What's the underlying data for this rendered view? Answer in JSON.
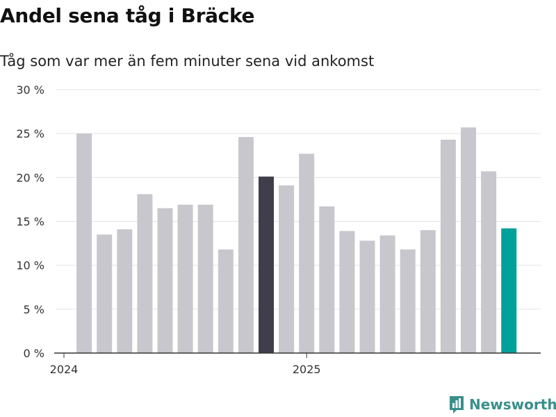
{
  "chart_data": {
    "type": "bar",
    "title": "Andel sena tåg i Bräcke",
    "subtitle": "Tåg som var mer än fem minuter sena vid ankomst",
    "y_ticks": [
      "0 %",
      "5 %",
      "10 %",
      "15 %",
      "20 %",
      "25 %",
      "30 %"
    ],
    "ylim": [
      0,
      30
    ],
    "x_tick_labels": [
      {
        "label": "2024",
        "index": 0
      },
      {
        "label": "2025",
        "index": 12
      }
    ],
    "categories": [
      "2024-01",
      "2024-02",
      "2024-03",
      "2024-04",
      "2024-05",
      "2024-06",
      "2024-07",
      "2024-08",
      "2024-09",
      "2024-10",
      "2024-11",
      "2024-12",
      "2025-01",
      "2025-02",
      "2025-03",
      "2025-04",
      "2025-05",
      "2025-06",
      "2025-07",
      "2025-08",
      "2025-09",
      "2025-10",
      "2025-11",
      "2025-12"
    ],
    "values": [
      null,
      25.0,
      13.5,
      14.1,
      18.1,
      16.5,
      16.9,
      16.9,
      11.8,
      24.6,
      20.1,
      19.1,
      22.7,
      16.7,
      13.9,
      12.8,
      13.4,
      11.8,
      14.0,
      24.3,
      25.7,
      20.7,
      14.2,
      null
    ],
    "highlight": {
      "2024-11": "#403e4a",
      "2025-11": "#00a19a"
    },
    "bar_color": "#c8c7cd",
    "grid": true
  },
  "brand": {
    "name": "Newsworthy",
    "icon": "bar-chart-flag-icon",
    "color": "#3a8f8a"
  }
}
